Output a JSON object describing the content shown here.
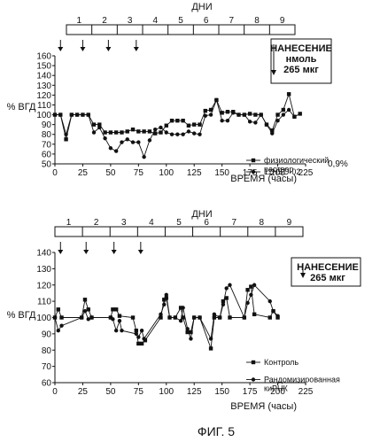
{
  "figure_caption": "ФИГ. 5",
  "chart_data": [
    {
      "type": "line",
      "days_label": "ДНИ",
      "days": [
        "1",
        "2",
        "3",
        "4",
        "5",
        "6",
        "7",
        "8",
        "9"
      ],
      "ylabel": "% ВГД",
      "xlabel": "ВРЕМЯ (часы)",
      "xlim": [
        0,
        225
      ],
      "ylim": [
        50,
        160
      ],
      "xticks": [
        0,
        25,
        50,
        75,
        100,
        125,
        150,
        175,
        200,
        225
      ],
      "yticks": [
        50,
        60,
        70,
        80,
        90,
        100,
        110,
        120,
        130,
        140,
        150,
        160
      ],
      "dosing_times": [
        5,
        25,
        48,
        73
      ],
      "annotation": {
        "lines": [
          "НАНЕСЕНИЕ",
          "нмоль",
          "265 мкг"
        ]
      },
      "side_note": "0,9%",
      "legend_position": "right",
      "series": [
        {
          "name": "физиологический раствор",
          "marker": "square",
          "points": [
            [
              0,
              100
            ],
            [
              5,
              100
            ],
            [
              10,
              75
            ],
            [
              15,
              100
            ],
            [
              20,
              100
            ],
            [
              25,
              100
            ],
            [
              30,
              100
            ],
            [
              35,
              90
            ],
            [
              40,
              90
            ],
            [
              45,
              82
            ],
            [
              50,
              82
            ],
            [
              55,
              82
            ],
            [
              60,
              82
            ],
            [
              65,
              83
            ],
            [
              70,
              85
            ],
            [
              75,
              83
            ],
            [
              80,
              83
            ],
            [
              85,
              83
            ],
            [
              90,
              81
            ],
            [
              95,
              82
            ],
            [
              100,
              89
            ],
            [
              105,
              94
            ],
            [
              110,
              94
            ],
            [
              115,
              94
            ],
            [
              120,
              89
            ],
            [
              125,
              90
            ],
            [
              130,
              90
            ],
            [
              135,
              104
            ],
            [
              140,
              105
            ],
            [
              145,
              115
            ],
            [
              150,
              102
            ],
            [
              155,
              103
            ],
            [
              160,
              103
            ],
            [
              165,
              100
            ],
            [
              170,
              100
            ],
            [
              175,
              101
            ],
            [
              180,
              100
            ],
            [
              185,
              100
            ],
            [
              190,
              90
            ],
            [
              195,
              84
            ],
            [
              200,
              100
            ],
            [
              205,
              105
            ],
            [
              210,
              121
            ],
            [
              215,
              98
            ],
            [
              220,
              101
            ]
          ]
        },
        {
          "name": "11HSD-02",
          "marker": "circle",
          "points": [
            [
              0,
              100
            ],
            [
              5,
              100
            ],
            [
              10,
              80
            ],
            [
              15,
              100
            ],
            [
              20,
              100
            ],
            [
              25,
              100
            ],
            [
              30,
              100
            ],
            [
              35,
              82
            ],
            [
              40,
              87
            ],
            [
              45,
              76
            ],
            [
              50,
              66
            ],
            [
              55,
              63
            ],
            [
              60,
              72
            ],
            [
              65,
              75
            ],
            [
              70,
              72
            ],
            [
              75,
              72
            ],
            [
              80,
              57
            ],
            [
              85,
              74
            ],
            [
              90,
              85
            ],
            [
              95,
              87
            ],
            [
              100,
              82
            ],
            [
              105,
              80
            ],
            [
              110,
              80
            ],
            [
              115,
              80
            ],
            [
              120,
              83
            ],
            [
              125,
              81
            ],
            [
              130,
              80
            ],
            [
              135,
              99
            ],
            [
              140,
              100
            ],
            [
              145,
              115
            ],
            [
              150,
              94
            ],
            [
              155,
              94
            ],
            [
              160,
              102
            ],
            [
              165,
              100
            ],
            [
              170,
              100
            ],
            [
              175,
              93
            ],
            [
              180,
              92
            ],
            [
              185,
              100
            ],
            [
              190,
              90
            ],
            [
              195,
              81
            ],
            [
              200,
              94
            ],
            [
              205,
              100
            ],
            [
              210,
              105
            ],
            [
              215,
              98
            ]
          ]
        }
      ]
    },
    {
      "type": "line",
      "days_label": "ДНИ",
      "days": [
        "1",
        "2",
        "3",
        "4",
        "5",
        "6",
        "7",
        "8",
        "9"
      ],
      "ylabel": "% ВГД",
      "xlabel": "ВРЕМЯ (часы)",
      "xlim": [
        0,
        225
      ],
      "ylim": [
        60,
        140
      ],
      "xticks": [
        0,
        25,
        50,
        75,
        100,
        125,
        150,
        175,
        200,
        225
      ],
      "yticks": [
        60,
        70,
        80,
        90,
        100,
        110,
        120,
        130,
        140
      ],
      "dosing_times": [
        5,
        28,
        53,
        77
      ],
      "annotation": {
        "lines": [
          "НАНЕСЕНИЕ",
          "265 мкг"
        ]
      },
      "legend_position": "right",
      "series": [
        {
          "name": "Контроль",
          "marker": "square",
          "points": [
            [
              0,
              100
            ],
            [
              3,
              105
            ],
            [
              6,
              100
            ],
            [
              24,
              100
            ],
            [
              27,
              111
            ],
            [
              30,
              105
            ],
            [
              33,
              100
            ],
            [
              50,
              100
            ],
            [
              52,
              105
            ],
            [
              55,
              105
            ],
            [
              58,
              101
            ],
            [
              70,
              100
            ],
            [
              73,
              92
            ],
            [
              75,
              84
            ],
            [
              78,
              84
            ],
            [
              81,
              86
            ],
            [
              95,
              100
            ],
            [
              98,
              111
            ],
            [
              100,
              112
            ],
            [
              103,
              100
            ],
            [
              108,
              100
            ],
            [
              113,
              106
            ],
            [
              115,
              100
            ],
            [
              119,
              91
            ],
            [
              122,
              91
            ],
            [
              125,
              100
            ],
            [
              130,
              100
            ],
            [
              140,
              81
            ],
            [
              143,
              100
            ],
            [
              148,
              100
            ],
            [
              151,
              110
            ],
            [
              154,
              112
            ],
            [
              157,
              100
            ],
            [
              170,
              100
            ],
            [
              173,
              117
            ],
            [
              176,
              119
            ],
            [
              179,
              102
            ],
            [
              193,
              100
            ],
            [
              196,
              104
            ],
            [
              200,
              100
            ]
          ]
        },
        {
          "name": "Рандомизированная киРНК",
          "marker": "circle",
          "points": [
            [
              0,
              100
            ],
            [
              3,
              92
            ],
            [
              6,
              95
            ],
            [
              24,
              100
            ],
            [
              27,
              104
            ],
            [
              30,
              99
            ],
            [
              33,
              100
            ],
            [
              50,
              100
            ],
            [
              52,
              99
            ],
            [
              55,
              92
            ],
            [
              58,
              98
            ],
            [
              60,
              92
            ],
            [
              73,
              90
            ],
            [
              75,
              88
            ],
            [
              78,
              92
            ],
            [
              80,
              87
            ],
            [
              95,
              102
            ],
            [
              98,
              108
            ],
            [
              100,
              114
            ],
            [
              103,
              100
            ],
            [
              108,
              100
            ],
            [
              113,
              98
            ],
            [
              115,
              106
            ],
            [
              119,
              93
            ],
            [
              122,
              87
            ],
            [
              125,
              100
            ],
            [
              130,
              100
            ],
            [
              140,
              87
            ],
            [
              143,
              102
            ],
            [
              148,
              100
            ],
            [
              151,
              108
            ],
            [
              154,
              118
            ],
            [
              157,
              120
            ],
            [
              170,
              100
            ],
            [
              173,
              109
            ],
            [
              176,
              114
            ],
            [
              179,
              120
            ],
            [
              193,
              110
            ],
            [
              196,
              104
            ],
            [
              200,
              101
            ]
          ]
        }
      ]
    }
  ]
}
